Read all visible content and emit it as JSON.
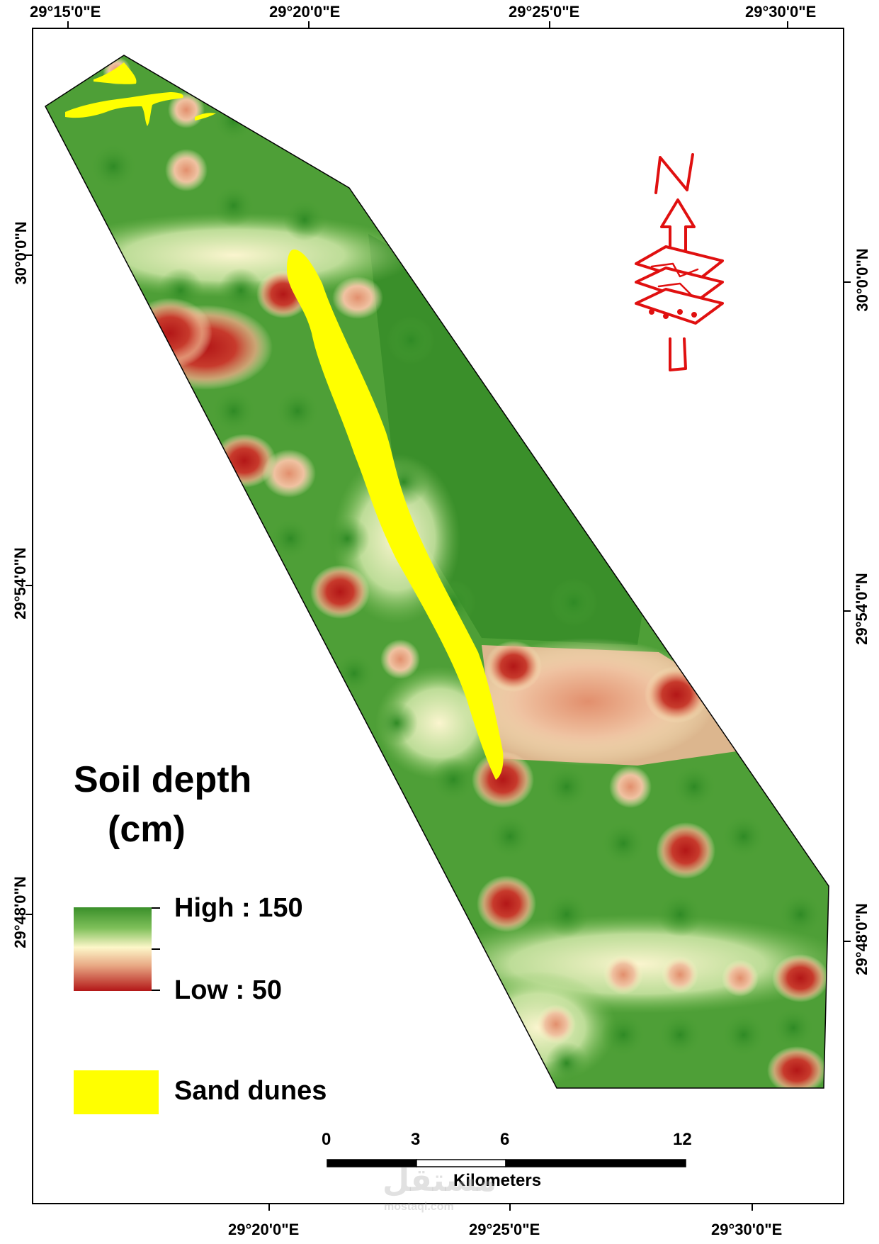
{
  "map": {
    "top_labels": [
      "29°15'0\"E",
      "29°20'0\"E",
      "29°25'0\"E",
      "29°30'0\"E"
    ],
    "bottom_labels": [
      "29°20'0\"E",
      "29°25'0\"E",
      "29°30'0\"E"
    ],
    "left_labels": [
      "30°0'0\"N",
      "29°54'0\"N",
      "29°48'0\"N"
    ],
    "right_labels": [
      "30°0'0\"N",
      "29°54'0\"N",
      "29°48'0\"N"
    ]
  },
  "legend": {
    "title_line1": "Soil depth",
    "title_line2": "(cm)",
    "high_label": "High : 150",
    "low_label": "Low : 50",
    "dunes_label": "Sand dunes",
    "ramp_colors": [
      "#3a8f2a",
      "#7fc05a",
      "#fdf7c9",
      "#e8a783",
      "#b31717"
    ],
    "dunes_color": "#ffff00"
  },
  "scalebar": {
    "ticks": [
      "0",
      "3",
      "6",
      "12"
    ],
    "unit": "Kilometers"
  },
  "north_arrow": {
    "letter": "N",
    "icon": "north-arrow-icon",
    "color": "#e01010"
  },
  "watermark": {
    "text": "مستقل",
    "subtext": "mostaql.com"
  }
}
